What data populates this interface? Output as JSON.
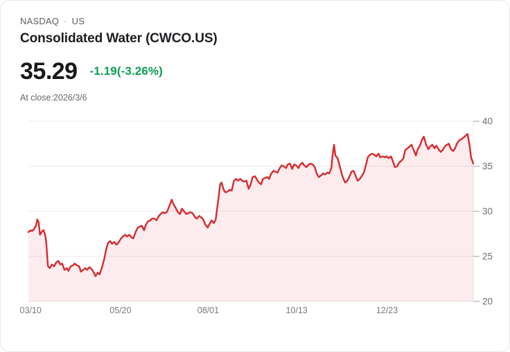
{
  "header": {
    "exchange": "NASDAQ",
    "separator": "·",
    "region": "US",
    "title": "Consolidated Water (CWCO.US)"
  },
  "quote": {
    "price": "35.29",
    "change": "-1.19(-3.26%)",
    "change_color": "#0aa04f",
    "as_of": "At close:2026/3/6"
  },
  "chart_data": {
    "type": "area",
    "title": "",
    "xlabel": "",
    "ylabel": "",
    "ylim": [
      20,
      40
    ],
    "yticks": [
      20,
      25,
      30,
      35,
      40
    ],
    "grid": true,
    "legend": "none",
    "line_color": "#d7282e",
    "fill_color": "rgba(215,40,46,0.085)",
    "grid_color": "#e9e9e9",
    "tick_color": "#9b9b9b",
    "ytick_text_color": "#6b6e72",
    "xtick_text_color": "#76797d",
    "xticks": [
      {
        "label": "03/10",
        "f": 0.005
      },
      {
        "label": "05/20",
        "f": 0.207
      },
      {
        "label": "08/01",
        "f": 0.404
      },
      {
        "label": "10/13",
        "f": 0.603
      },
      {
        "label": "12/23",
        "f": 0.806
      }
    ],
    "points": [
      [
        0.0,
        27.7
      ],
      [
        0.005,
        27.9
      ],
      [
        0.008,
        27.8
      ],
      [
        0.012,
        28.0
      ],
      [
        0.017,
        28.4
      ],
      [
        0.02,
        29.1
      ],
      [
        0.023,
        28.8
      ],
      [
        0.026,
        27.4
      ],
      [
        0.031,
        27.8
      ],
      [
        0.034,
        27.9
      ],
      [
        0.037,
        27.5
      ],
      [
        0.04,
        26.6
      ],
      [
        0.044,
        23.9
      ],
      [
        0.048,
        23.7
      ],
      [
        0.053,
        24.1
      ],
      [
        0.058,
        23.9
      ],
      [
        0.062,
        24.3
      ],
      [
        0.067,
        24.5
      ],
      [
        0.072,
        24.1
      ],
      [
        0.076,
        24.2
      ],
      [
        0.081,
        23.5
      ],
      [
        0.086,
        23.7
      ],
      [
        0.09,
        23.4
      ],
      [
        0.095,
        23.9
      ],
      [
        0.1,
        24.0
      ],
      [
        0.104,
        24.2
      ],
      [
        0.109,
        24.0
      ],
      [
        0.114,
        23.9
      ],
      [
        0.118,
        23.3
      ],
      [
        0.123,
        23.5
      ],
      [
        0.128,
        23.7
      ],
      [
        0.132,
        23.5
      ],
      [
        0.137,
        23.8
      ],
      [
        0.142,
        23.6
      ],
      [
        0.146,
        23.3
      ],
      [
        0.151,
        22.8
      ],
      [
        0.156,
        23.2
      ],
      [
        0.16,
        23.0
      ],
      [
        0.165,
        23.7
      ],
      [
        0.17,
        24.6
      ],
      [
        0.174,
        25.6
      ],
      [
        0.179,
        26.5
      ],
      [
        0.184,
        26.7
      ],
      [
        0.188,
        26.4
      ],
      [
        0.193,
        26.6
      ],
      [
        0.198,
        26.3
      ],
      [
        0.202,
        26.5
      ],
      [
        0.207,
        26.9
      ],
      [
        0.212,
        27.2
      ],
      [
        0.218,
        27.4
      ],
      [
        0.222,
        27.2
      ],
      [
        0.227,
        27.4
      ],
      [
        0.232,
        27.1
      ],
      [
        0.236,
        27.0
      ],
      [
        0.241,
        27.7
      ],
      [
        0.246,
        28.2
      ],
      [
        0.25,
        28.3
      ],
      [
        0.255,
        28.4
      ],
      [
        0.26,
        27.9
      ],
      [
        0.264,
        28.5
      ],
      [
        0.269,
        28.9
      ],
      [
        0.274,
        29.0
      ],
      [
        0.278,
        29.2
      ],
      [
        0.283,
        29.2
      ],
      [
        0.288,
        29.0
      ],
      [
        0.292,
        29.4
      ],
      [
        0.297,
        29.7
      ],
      [
        0.302,
        29.9
      ],
      [
        0.306,
        29.8
      ],
      [
        0.311,
        29.9
      ],
      [
        0.317,
        30.6
      ],
      [
        0.322,
        31.3
      ],
      [
        0.327,
        30.7
      ],
      [
        0.331,
        30.4
      ],
      [
        0.336,
        29.9
      ],
      [
        0.341,
        29.7
      ],
      [
        0.345,
        30.3
      ],
      [
        0.35,
        30.0
      ],
      [
        0.355,
        29.7
      ],
      [
        0.359,
        29.8
      ],
      [
        0.364,
        29.9
      ],
      [
        0.369,
        29.8
      ],
      [
        0.375,
        29.3
      ],
      [
        0.379,
        29.2
      ],
      [
        0.384,
        29.5
      ],
      [
        0.389,
        29.3
      ],
      [
        0.393,
        29.1
      ],
      [
        0.398,
        28.5
      ],
      [
        0.403,
        28.2
      ],
      [
        0.407,
        28.6
      ],
      [
        0.412,
        29.0
      ],
      [
        0.417,
        28.7
      ],
      [
        0.421,
        29.1
      ],
      [
        0.426,
        31.0
      ],
      [
        0.431,
        33.0
      ],
      [
        0.434,
        33.2
      ],
      [
        0.439,
        32.4
      ],
      [
        0.443,
        32.1
      ],
      [
        0.448,
        32.2
      ],
      [
        0.453,
        32.4
      ],
      [
        0.457,
        32.3
      ],
      [
        0.462,
        33.4
      ],
      [
        0.467,
        33.6
      ],
      [
        0.471,
        33.4
      ],
      [
        0.476,
        33.6
      ],
      [
        0.481,
        33.4
      ],
      [
        0.485,
        33.3
      ],
      [
        0.49,
        33.4
      ],
      [
        0.495,
        32.5
      ],
      [
        0.499,
        32.9
      ],
      [
        0.504,
        33.8
      ],
      [
        0.509,
        33.9
      ],
      [
        0.513,
        33.6
      ],
      [
        0.518,
        33.2
      ],
      [
        0.523,
        33.0
      ],
      [
        0.527,
        33.6
      ],
      [
        0.532,
        33.7
      ],
      [
        0.537,
        33.8
      ],
      [
        0.541,
        33.6
      ],
      [
        0.546,
        34.2
      ],
      [
        0.551,
        34.5
      ],
      [
        0.555,
        34.4
      ],
      [
        0.56,
        34.3
      ],
      [
        0.565,
        34.8
      ],
      [
        0.569,
        35.1
      ],
      [
        0.574,
        35.0
      ],
      [
        0.579,
        34.8
      ],
      [
        0.583,
        35.2
      ],
      [
        0.588,
        35.3
      ],
      [
        0.593,
        34.7
      ],
      [
        0.597,
        35.2
      ],
      [
        0.602,
        35.1
      ],
      [
        0.607,
        34.8
      ],
      [
        0.611,
        35.2
      ],
      [
        0.616,
        35.4
      ],
      [
        0.62,
        35.1
      ],
      [
        0.625,
        34.9
      ],
      [
        0.63,
        35.2
      ],
      [
        0.634,
        35.3
      ],
      [
        0.639,
        35.2
      ],
      [
        0.644,
        34.9
      ],
      [
        0.648,
        34.2
      ],
      [
        0.653,
        33.8
      ],
      [
        0.658,
        34.0
      ],
      [
        0.662,
        34.2
      ],
      [
        0.667,
        34.1
      ],
      [
        0.672,
        34.3
      ],
      [
        0.676,
        34.2
      ],
      [
        0.681,
        34.8
      ],
      [
        0.684,
        36.3
      ],
      [
        0.687,
        37.4
      ],
      [
        0.69,
        36.2
      ],
      [
        0.695,
        35.9
      ],
      [
        0.7,
        35.0
      ],
      [
        0.704,
        34.2
      ],
      [
        0.709,
        33.5
      ],
      [
        0.712,
        33.2
      ],
      [
        0.717,
        33.4
      ],
      [
        0.722,
        33.9
      ],
      [
        0.726,
        34.4
      ],
      [
        0.731,
        34.5
      ],
      [
        0.735,
        34.0
      ],
      [
        0.74,
        33.4
      ],
      [
        0.745,
        33.6
      ],
      [
        0.749,
        33.9
      ],
      [
        0.754,
        34.3
      ],
      [
        0.759,
        35.2
      ],
      [
        0.763,
        36.0
      ],
      [
        0.768,
        36.3
      ],
      [
        0.773,
        36.4
      ],
      [
        0.777,
        36.3
      ],
      [
        0.782,
        36.1
      ],
      [
        0.787,
        36.4
      ],
      [
        0.791,
        36.0
      ],
      [
        0.796,
        36.1
      ],
      [
        0.801,
        36.0
      ],
      [
        0.805,
        36.1
      ],
      [
        0.81,
        35.9
      ],
      [
        0.815,
        36.1
      ],
      [
        0.819,
        35.6
      ],
      [
        0.824,
        34.9
      ],
      [
        0.829,
        35.0
      ],
      [
        0.833,
        35.4
      ],
      [
        0.838,
        35.6
      ],
      [
        0.843,
        35.9
      ],
      [
        0.847,
        36.8
      ],
      [
        0.852,
        37.0
      ],
      [
        0.857,
        37.2
      ],
      [
        0.861,
        37.4
      ],
      [
        0.866,
        36.8
      ],
      [
        0.871,
        36.2
      ],
      [
        0.875,
        36.9
      ],
      [
        0.88,
        37.3
      ],
      [
        0.885,
        38.0
      ],
      [
        0.889,
        38.3
      ],
      [
        0.894,
        37.4
      ],
      [
        0.899,
        36.9
      ],
      [
        0.903,
        37.2
      ],
      [
        0.908,
        37.4
      ],
      [
        0.913,
        37.0
      ],
      [
        0.917,
        37.3
      ],
      [
        0.922,
        36.9
      ],
      [
        0.927,
        36.6
      ],
      [
        0.931,
        36.8
      ],
      [
        0.936,
        37.2
      ],
      [
        0.941,
        37.4
      ],
      [
        0.945,
        37.5
      ],
      [
        0.95,
        36.9
      ],
      [
        0.955,
        36.7
      ],
      [
        0.959,
        37.0
      ],
      [
        0.964,
        37.6
      ],
      [
        0.969,
        37.9
      ],
      [
        0.973,
        38.0
      ],
      [
        0.978,
        38.2
      ],
      [
        0.983,
        38.4
      ],
      [
        0.987,
        38.6
      ],
      [
        0.992,
        37.2
      ],
      [
        0.995,
        36.0
      ],
      [
        1.0,
        35.29
      ]
    ]
  }
}
